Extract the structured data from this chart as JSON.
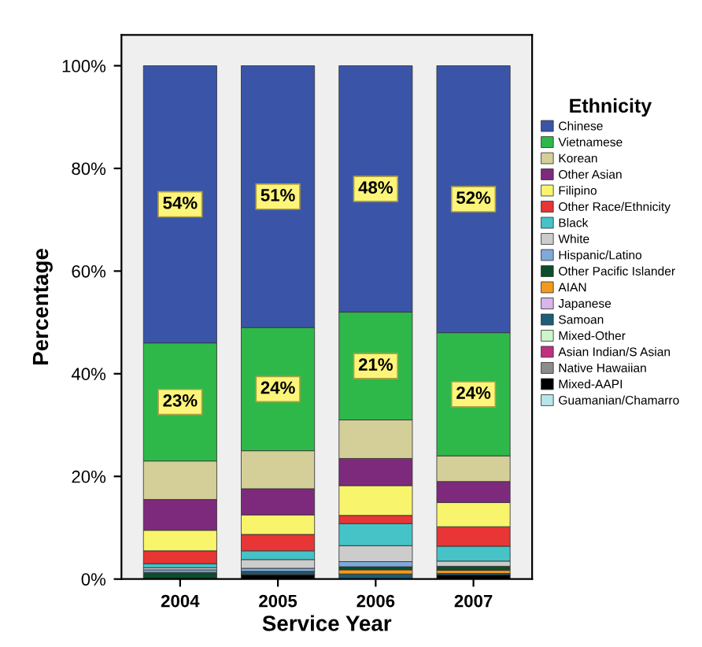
{
  "chart_data": {
    "type": "bar",
    "stacked": true,
    "xlabel": "Service Year",
    "ylabel": "Percentage",
    "legend_title": "Ethnicity",
    "legend": "right",
    "grid": false,
    "categories": [
      "2004",
      "2005",
      "2006",
      "2007"
    ],
    "ylim": [
      0,
      106
    ],
    "yticks": [
      {
        "value": 0,
        "label": "0%"
      },
      {
        "value": 20,
        "label": "20%"
      },
      {
        "value": 40,
        "label": "40%"
      },
      {
        "value": 60,
        "label": "60%"
      },
      {
        "value": 80,
        "label": "80%"
      },
      {
        "value": 100,
        "label": "100%"
      }
    ],
    "series": [
      {
        "name": "Guamanian/Chamarro",
        "color": "#b6e6ea",
        "values": [
          0,
          0,
          0,
          0
        ]
      },
      {
        "name": "Mixed-AAPI",
        "color": "#000000",
        "values": [
          0,
          0.9,
          0,
          0.8
        ]
      },
      {
        "name": "Native Hawaiian",
        "color": "#8c8c8c",
        "values": [
          0,
          0,
          0,
          0
        ]
      },
      {
        "name": "Asian Indian/S Asian",
        "color": "#bf3080",
        "values": [
          0,
          0,
          0,
          0
        ]
      },
      {
        "name": "Mixed-Other",
        "color": "#ccf5cc",
        "values": [
          0,
          0,
          0,
          0
        ]
      },
      {
        "name": "Samoan",
        "color": "#1c5d78",
        "values": [
          0,
          0.6,
          1,
          0.3
        ]
      },
      {
        "name": "Japanese",
        "color": "#d7b7ea",
        "values": [
          0,
          0,
          0,
          0
        ]
      },
      {
        "name": "AIAN",
        "color": "#f39a1c",
        "values": [
          0,
          0,
          0.8,
          0.6
        ]
      },
      {
        "name": "Other Pacific Islander",
        "color": "#0c4d2c",
        "values": [
          1.3,
          0,
          0.6,
          0.8
        ]
      },
      {
        "name": "Hispanic/Latino",
        "color": "#7fa9d9",
        "values": [
          0.5,
          0.6,
          1,
          0
        ]
      },
      {
        "name": "White",
        "color": "#cccccc",
        "values": [
          0.4,
          1.7,
          3.1,
          1
        ]
      },
      {
        "name": "Black",
        "color": "#45c3c7",
        "values": [
          0.8,
          1.7,
          4.3,
          2.9
        ]
      },
      {
        "name": "Other Race/Ethnicity",
        "color": "#e83535",
        "values": [
          2.5,
          3.2,
          1.6,
          3.8
        ]
      },
      {
        "name": "Filipino",
        "color": "#f8f46c",
        "values": [
          4,
          3.8,
          5.8,
          4.7
        ]
      },
      {
        "name": "Other Asian",
        "color": "#7d2a7d",
        "values": [
          6,
          5.1,
          5.3,
          4.1
        ]
      },
      {
        "name": "Korean",
        "color": "#d4cf98",
        "values": [
          7.5,
          7.4,
          7.5,
          5
        ]
      },
      {
        "name": "Vietnamese",
        "color": "#2eb84a",
        "values": [
          23,
          24,
          21,
          24
        ],
        "value_labels": [
          "23%",
          "24%",
          "21%",
          "24%"
        ]
      },
      {
        "name": "Chinese",
        "color": "#3a55a8",
        "values": [
          54,
          51,
          48,
          52
        ],
        "value_labels": [
          "54%",
          "51%",
          "48%",
          "52%"
        ]
      }
    ]
  }
}
